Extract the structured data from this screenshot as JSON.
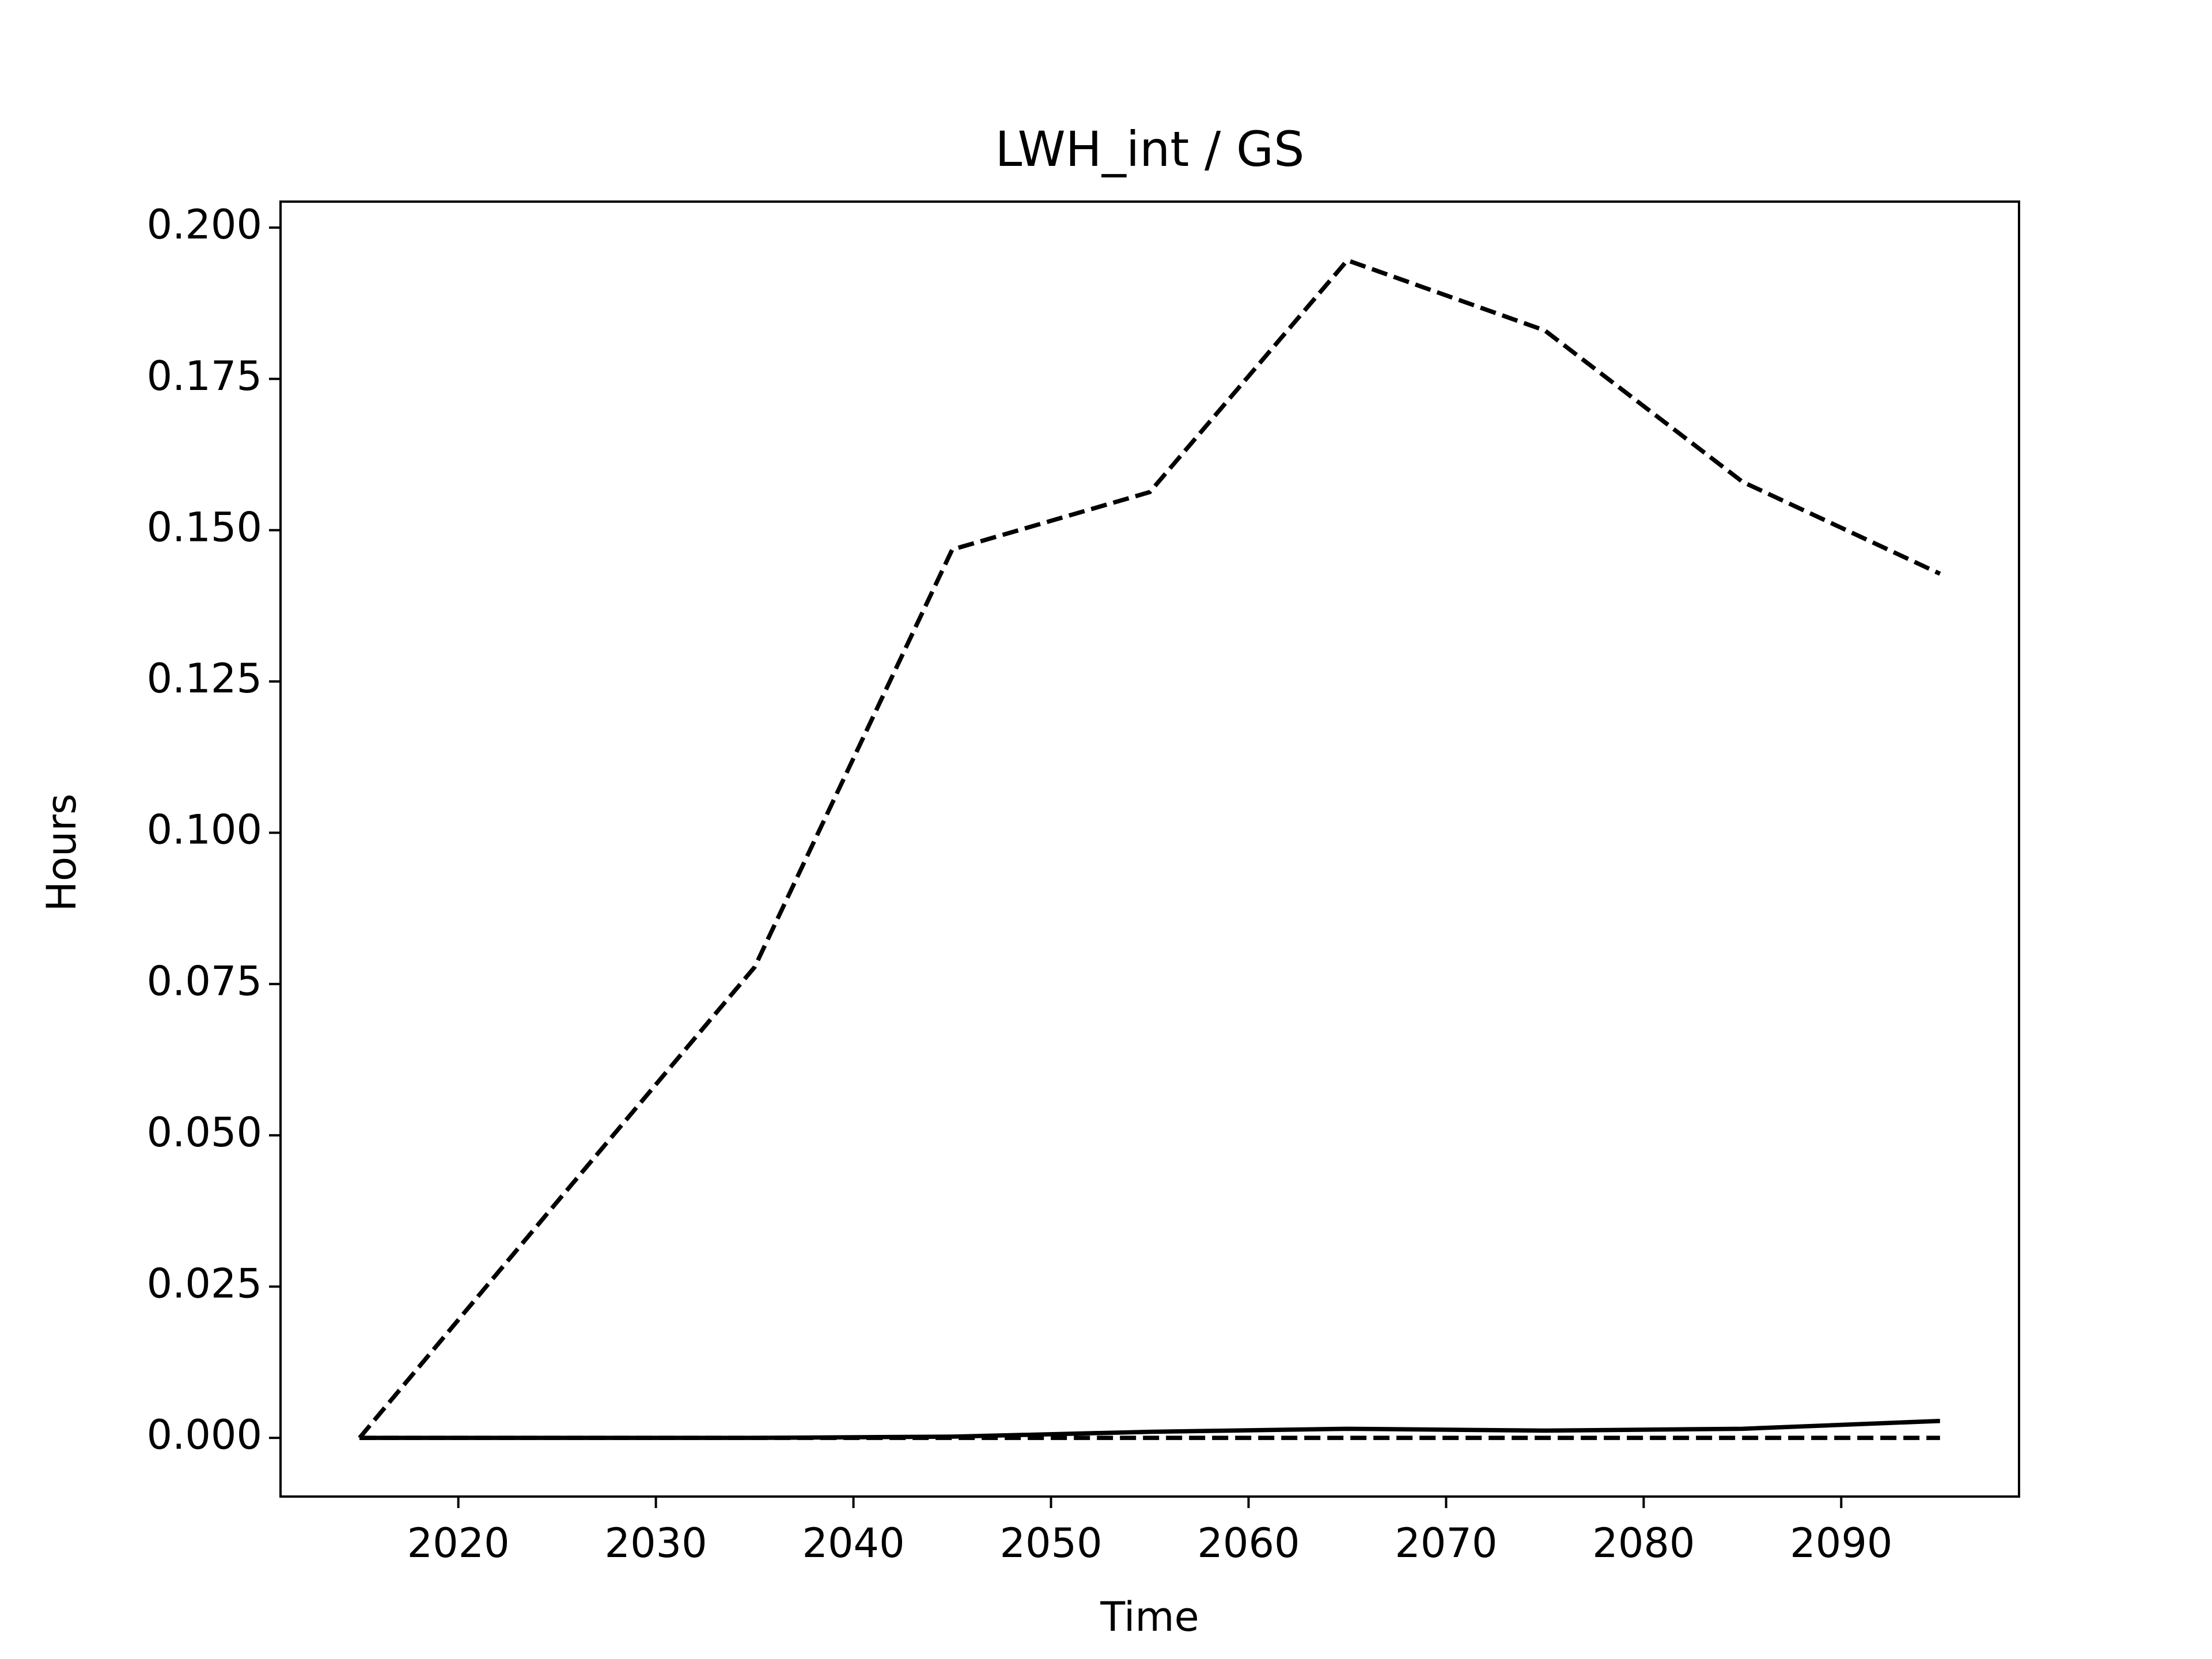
{
  "chart_data": {
    "type": "line",
    "title": "LWH_int / GS",
    "x_label": "Time",
    "y_label": "Hours",
    "x": [
      2015,
      2025,
      2035,
      2045,
      2055,
      2065,
      2075,
      2085,
      2095
    ],
    "series": [
      {
        "color": "#000000",
        "linestyle": "dashed",
        "values": [
          0,
          0.039,
          0.0778,
          0.1468,
          0.1563,
          0.1946,
          0.183,
          0.158,
          0.1428
        ]
      },
      {
        "color": "#000000",
        "linestyle": "solid",
        "values": [
          0,
          0,
          0,
          0.0002,
          0.001,
          0.0015,
          0.0012,
          0.0015,
          0.0028
        ]
      },
      {
        "color": "#000000",
        "linestyle": "dashed",
        "values": [
          0,
          0,
          0,
          0,
          0,
          0,
          0,
          0,
          0
        ]
      }
    ],
    "xlim": [
      2011,
      2099
    ],
    "xticks": [
      2020,
      2030,
      2040,
      2050,
      2060,
      2070,
      2080,
      2090
    ],
    "ylim": [
      -0.0097,
      0.2043
    ],
    "yticks": [
      {
        "value": 0,
        "label": "0.000"
      },
      {
        "value": 0.025,
        "label": "0.025"
      },
      {
        "value": 0.05,
        "label": "0.050"
      },
      {
        "value": 0.075,
        "label": "0.075"
      },
      {
        "value": 0.1,
        "label": "0.100"
      },
      {
        "value": 0.125,
        "label": "0.125"
      },
      {
        "value": 0.15,
        "label": "0.150"
      },
      {
        "value": 0.175,
        "label": "0.175"
      },
      {
        "value": 0.2,
        "label": "0.200"
      }
    ],
    "grid": false
  }
}
